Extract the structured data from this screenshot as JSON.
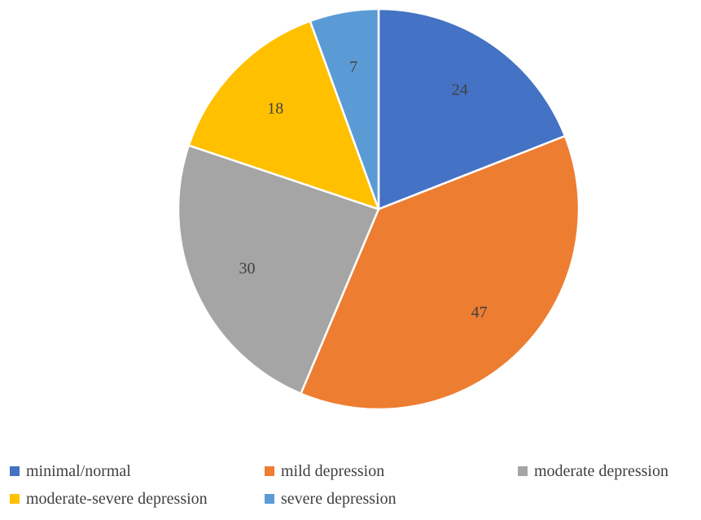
{
  "chart_data": {
    "type": "pie",
    "categories": [
      "minimal/normal",
      "mild depression",
      "moderate depression",
      "moderate-severe depression",
      "severe depression"
    ],
    "values": [
      24,
      47,
      30,
      18,
      7
    ],
    "data_labels": [
      "24",
      "47",
      "30",
      "18",
      "7"
    ],
    "colors": [
      "#4472C4",
      "#ED7D31",
      "#A5A5A5",
      "#FFC000",
      "#5B9BD5"
    ],
    "start_angle": "12 o'clock",
    "direction": "clockwise",
    "legend_position": "bottom",
    "title": ""
  }
}
